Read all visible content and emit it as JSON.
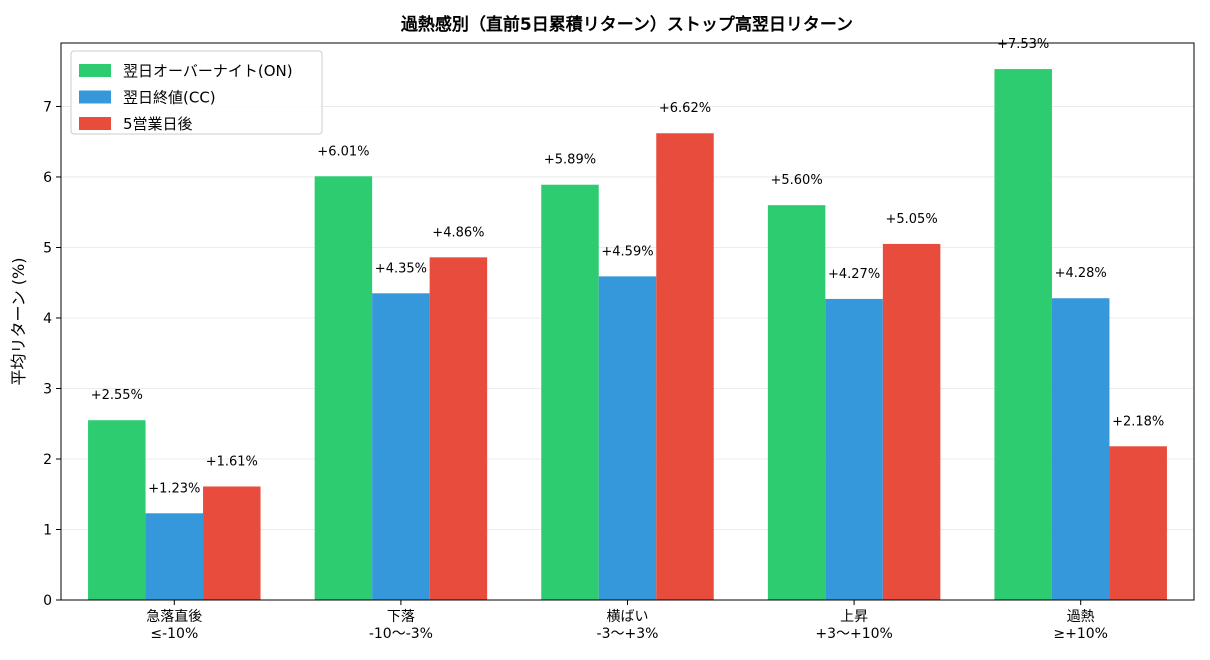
{
  "chart_data": {
    "type": "bar",
    "title": "過熱感別（直前5日累積リターン）ストップ高翌日リターン",
    "xlabel": "",
    "ylabel": "平均リターン (%)",
    "ylim": [
      0,
      7.9
    ],
    "yticks": [
      "0",
      "1",
      "2",
      "3",
      "4",
      "5",
      "6",
      "7"
    ],
    "grid": "y",
    "legend_position": "top-left",
    "categories": [
      [
        "急落直後",
        "≤-10%"
      ],
      [
        "下落",
        "-10〜-3%"
      ],
      [
        "横ばい",
        "-3〜+3%"
      ],
      [
        "上昇",
        "+3〜+10%"
      ],
      [
        "過熱",
        "≥+10%"
      ]
    ],
    "series": [
      {
        "name": "翌日オーバーナイト(ON)",
        "color": "#2ecc71",
        "values": [
          2.55,
          6.01,
          5.89,
          5.6,
          7.53
        ],
        "labels": [
          "+2.55%",
          "+6.01%",
          "+5.89%",
          "+5.60%",
          "+7.53%"
        ]
      },
      {
        "name": "翌日終値(CC)",
        "color": "#3498db",
        "values": [
          1.23,
          4.35,
          4.59,
          4.27,
          4.28
        ],
        "labels": [
          "+1.23%",
          "+4.35%",
          "+4.59%",
          "+4.27%",
          "+4.28%"
        ]
      },
      {
        "name": "5営業日後",
        "color": "#e74c3c",
        "values": [
          1.61,
          4.86,
          6.62,
          5.05,
          2.18
        ],
        "labels": [
          "+1.61%",
          "+4.86%",
          "+6.62%",
          "+5.05%",
          "+2.18%"
        ]
      }
    ]
  }
}
